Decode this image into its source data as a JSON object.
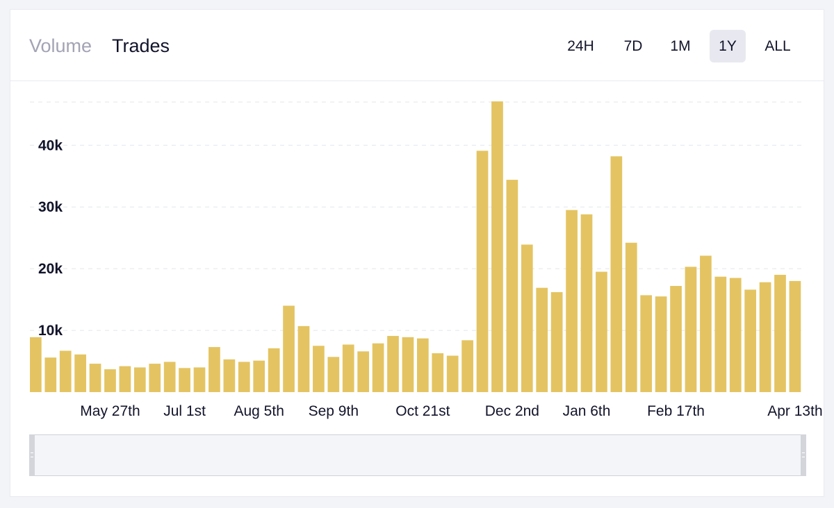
{
  "tabs": {
    "volume": "Volume",
    "trades": "Trades"
  },
  "ranges": [
    "24H",
    "7D",
    "1M",
    "1Y",
    "ALL"
  ],
  "active_range": "1Y",
  "colors": {
    "bar": "#e4c462",
    "grid": "#e4e5ea",
    "text": "#11132a",
    "inactive_tab": "#a3a3b4"
  },
  "chart_data": {
    "type": "bar",
    "title": "",
    "xlabel": "",
    "ylabel": "",
    "ylim": [
      0,
      47000
    ],
    "y_ticks": [
      10000,
      20000,
      30000,
      40000
    ],
    "y_tick_labels": [
      "10k",
      "20k",
      "30k",
      "40k"
    ],
    "x_tick_labels": [
      "May 27th",
      "Jul 1st",
      "Aug 5th",
      "Sep 9th",
      "Oct 21st",
      "Dec 2nd",
      "Jan 6th",
      "Feb 17th",
      "Apr 13th"
    ],
    "x_tick_bar_index": [
      5,
      10,
      15,
      20,
      26,
      32,
      37,
      43,
      51
    ],
    "grid": true,
    "values": [
      8900,
      5600,
      6700,
      6100,
      4600,
      3700,
      4200,
      4000,
      4600,
      4900,
      3900,
      4000,
      7300,
      5300,
      4900,
      5100,
      7100,
      14000,
      10700,
      7500,
      5700,
      7700,
      6600,
      7900,
      9100,
      8900,
      8700,
      6300,
      5900,
      8400,
      39100,
      47100,
      34400,
      23900,
      16900,
      16200,
      29500,
      28800,
      19500,
      38200,
      24200,
      15700,
      15500,
      17200,
      20300,
      22100,
      18700,
      18500,
      16600,
      17800,
      19000,
      18000
    ]
  }
}
